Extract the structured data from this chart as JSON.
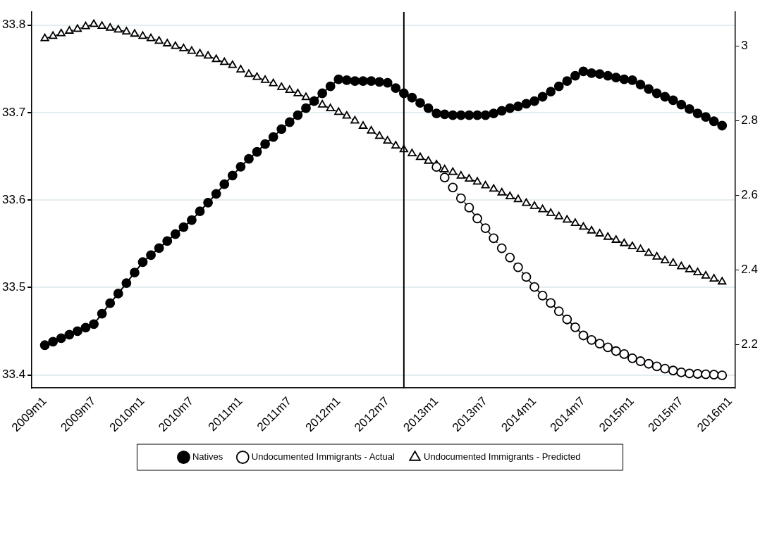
{
  "chart_data": {
    "type": "line",
    "x": [
      "2009-01",
      "2009-02",
      "2009-03",
      "2009-04",
      "2009-05",
      "2009-06",
      "2009-07",
      "2009-08",
      "2009-09",
      "2009-10",
      "2009-11",
      "2009-12",
      "2010-01",
      "2010-02",
      "2010-03",
      "2010-04",
      "2010-05",
      "2010-06",
      "2010-07",
      "2010-08",
      "2010-09",
      "2010-10",
      "2010-11",
      "2010-12",
      "2011-01",
      "2011-02",
      "2011-03",
      "2011-04",
      "2011-05",
      "2011-06",
      "2011-07",
      "2011-08",
      "2011-09",
      "2011-10",
      "2011-11",
      "2011-12",
      "2012-01",
      "2012-02",
      "2012-03",
      "2012-04",
      "2012-05",
      "2012-06",
      "2012-07",
      "2012-08",
      "2012-09",
      "2012-10",
      "2012-11",
      "2012-12",
      "2013-01",
      "2013-02",
      "2013-03",
      "2013-04",
      "2013-05",
      "2013-06",
      "2013-07",
      "2013-08",
      "2013-09",
      "2013-10",
      "2013-11",
      "2013-12",
      "2014-01",
      "2014-02",
      "2014-03",
      "2014-04",
      "2014-05",
      "2014-06",
      "2014-07",
      "2014-08",
      "2014-09",
      "2014-10",
      "2014-11",
      "2014-12",
      "2015-01",
      "2015-02",
      "2015-03",
      "2015-04",
      "2015-05",
      "2015-06",
      "2015-07",
      "2015-08",
      "2015-09",
      "2015-10",
      "2015-11",
      "2015-12"
    ],
    "series": [
      {
        "name": "Natives",
        "color": "#000000",
        "marker": "circle",
        "line_style": "solid",
        "values": [
          33.434,
          33.438,
          33.442,
          33.446,
          33.45,
          33.454,
          33.458,
          33.47,
          33.482,
          33.493,
          33.505,
          33.517,
          33.529,
          33.537,
          33.545,
          33.553,
          33.561,
          33.569,
          33.577,
          33.587,
          33.597,
          33.607,
          33.618,
          33.628,
          33.638,
          33.647,
          33.655,
          33.664,
          33.672,
          33.681,
          33.689,
          33.697,
          33.705,
          33.713,
          33.722,
          33.73,
          33.738,
          33.737,
          33.736,
          33.736,
          33.736,
          33.735,
          33.734,
          33.728,
          33.722,
          33.717,
          33.711,
          33.705,
          33.699,
          33.698,
          33.697,
          33.697,
          33.697,
          33.697,
          33.697,
          33.699,
          33.702,
          33.705,
          33.707,
          33.71,
          33.713,
          33.718,
          33.724,
          33.73,
          33.736,
          33.742,
          33.747,
          33.745,
          33.744,
          33.742,
          33.74,
          33.738,
          33.737,
          33.732,
          33.727,
          33.722,
          33.718,
          33.714,
          33.709,
          33.704,
          33.699,
          33.695,
          33.69,
          33.685
        ]
      },
      {
        "name": "Undocumented Immigrants - Actual",
        "color": "#000000",
        "marker": "circle",
        "line_style": "dashed",
        "axis": "y2",
        "values": [
          null,
          null,
          null,
          null,
          null,
          null,
          null,
          null,
          null,
          null,
          null,
          null,
          null,
          null,
          null,
          null,
          null,
          null,
          null,
          null,
          null,
          null,
          null,
          null,
          null,
          null,
          null,
          null,
          null,
          null,
          null,
          null,
          null,
          null,
          null,
          null,
          null,
          null,
          null,
          null,
          null,
          null,
          null,
          null,
          null,
          null,
          null,
          null,
          2.676,
          2.648,
          2.621,
          2.592,
          2.567,
          2.538,
          2.512,
          2.485,
          2.458,
          2.433,
          2.407,
          2.381,
          2.354,
          2.331,
          2.311,
          2.289,
          2.267,
          2.246,
          2.224,
          2.212,
          2.202,
          2.192,
          2.182,
          2.174,
          2.163,
          2.155,
          2.148,
          2.141,
          2.135,
          2.13,
          2.125,
          2.122,
          2.121,
          2.12,
          2.119,
          2.117
        ]
      },
      {
        "name": "Undocumented Immigrants - Predicted",
        "color": "#000000",
        "marker": "triangle",
        "line_style": "dashed",
        "axis": "y2",
        "values": [
          3.021,
          3.027,
          3.034,
          3.041,
          3.046,
          3.053,
          3.059,
          3.054,
          3.049,
          3.044,
          3.039,
          3.033,
          3.027,
          3.021,
          3.014,
          3.007,
          3.0,
          2.994,
          2.987,
          2.98,
          2.974,
          2.965,
          2.957,
          2.949,
          2.937,
          2.925,
          2.917,
          2.909,
          2.9,
          2.89,
          2.882,
          2.873,
          2.863,
          2.853,
          2.843,
          2.833,
          2.823,
          2.813,
          2.8,
          2.786,
          2.773,
          2.759,
          2.746,
          2.733,
          2.723,
          2.712,
          2.702,
          2.692,
          2.682,
          2.669,
          2.662,
          2.652,
          2.644,
          2.636,
          2.626,
          2.617,
          2.607,
          2.597,
          2.589,
          2.579,
          2.571,
          2.562,
          2.552,
          2.543,
          2.534,
          2.525,
          2.515,
          2.505,
          2.497,
          2.488,
          2.48,
          2.471,
          2.463,
          2.455,
          2.445,
          2.435,
          2.425,
          2.418,
          2.409,
          2.401,
          2.393,
          2.384,
          2.376,
          2.368
        ]
      }
    ],
    "xlim": [
      "2008-11-13",
      "2016-01-18"
    ],
    "xticks": [
      {
        "value": "2009-01",
        "label": "2009m1"
      },
      {
        "value": "2009-07",
        "label": "2009m7"
      },
      {
        "value": "2010-01",
        "label": "2010m1"
      },
      {
        "value": "2010-07",
        "label": "2010m7"
      },
      {
        "value": "2011-01",
        "label": "2011m1"
      },
      {
        "value": "2011-07",
        "label": "2011m7"
      },
      {
        "value": "2012-01",
        "label": "2012m1"
      },
      {
        "value": "2012-07",
        "label": "2012m7"
      },
      {
        "value": "2013-01",
        "label": "2013m1"
      },
      {
        "value": "2013-07",
        "label": "2013m7"
      },
      {
        "value": "2014-01",
        "label": "2014m1"
      },
      {
        "value": "2014-07",
        "label": "2014m7"
      },
      {
        "value": "2015-01",
        "label": "2015m1"
      },
      {
        "value": "2015-07",
        "label": "2015m7"
      },
      {
        "value": "2016-01",
        "label": "2016m1"
      }
    ],
    "ylim": [
      33.385,
      33.815
    ],
    "yticks": [
      33.4,
      33.5,
      33.6,
      33.7,
      33.8
    ],
    "y2lim": [
      2.083,
      3.092
    ],
    "y2ticks": [
      2.2,
      2.4,
      2.6,
      2.8,
      3
    ],
    "ref_lines": [
      {
        "axis": "x",
        "value": "2012-09",
        "color": "#000000"
      }
    ],
    "grid": "y",
    "legend": "bottom"
  }
}
